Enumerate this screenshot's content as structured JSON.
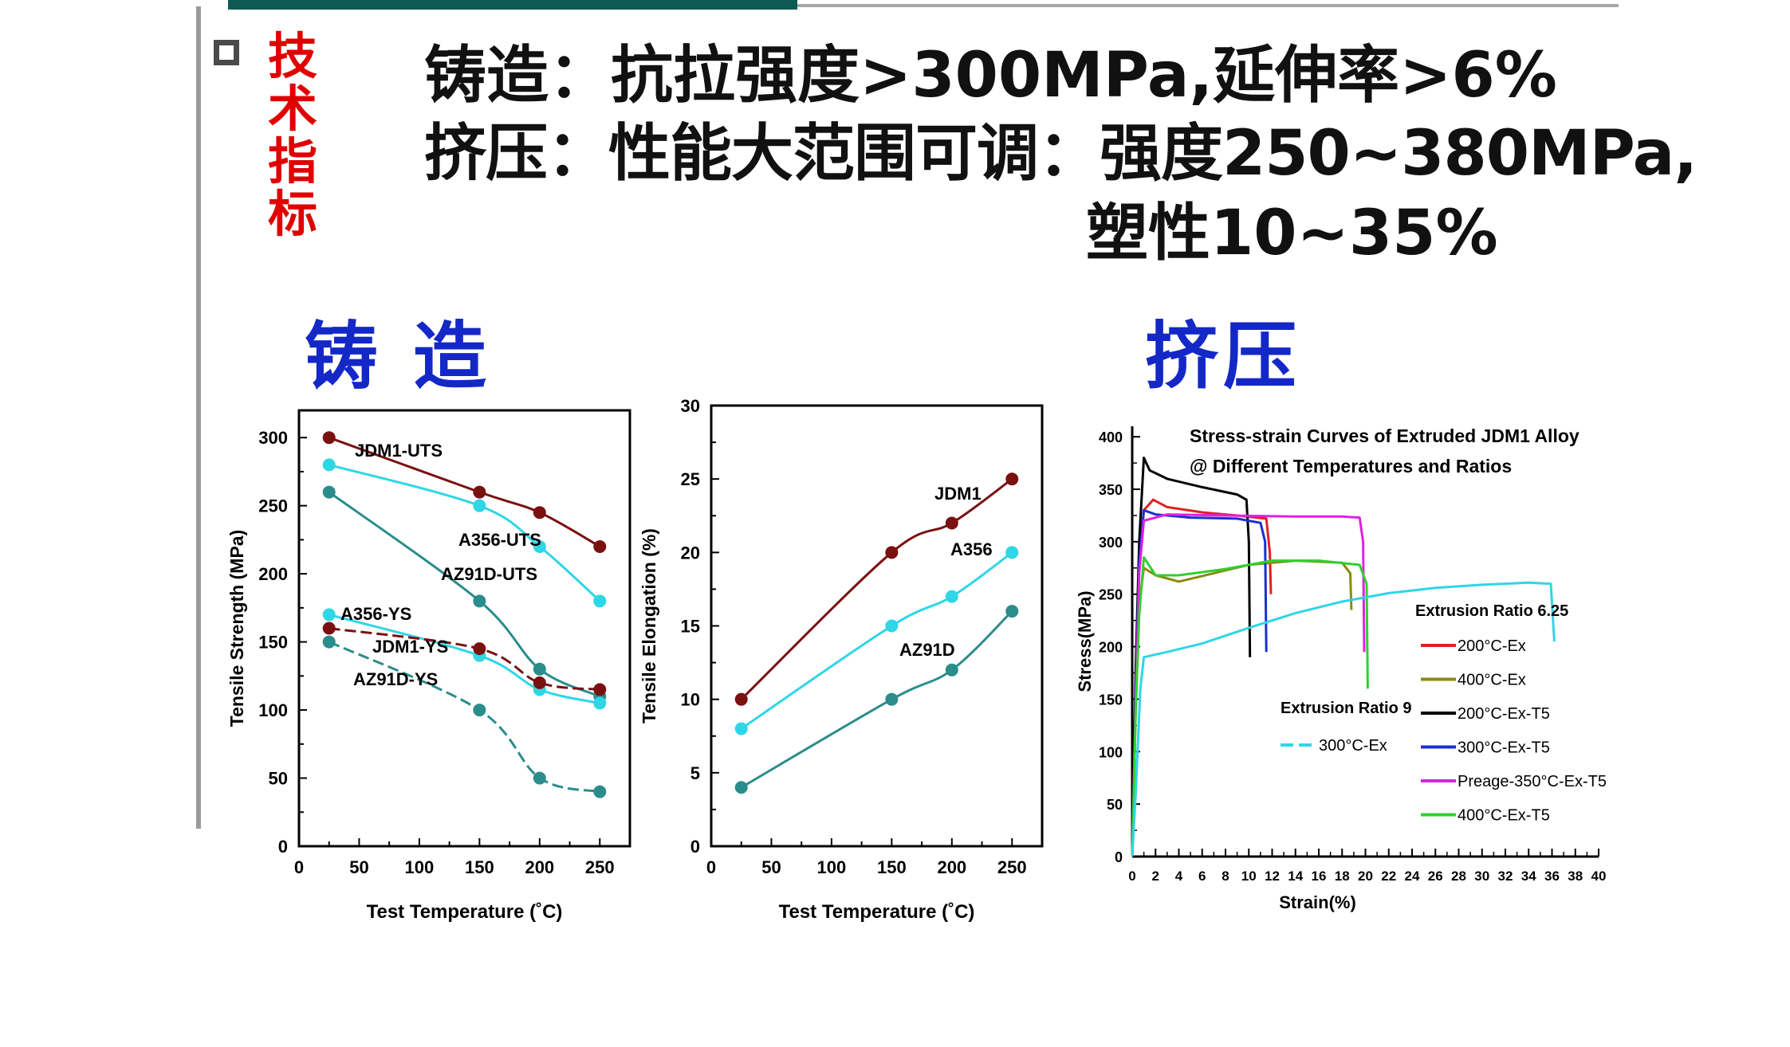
{
  "slide": {
    "tag": [
      "技术",
      "指标"
    ],
    "spec_lines": [
      "铸造：抗拉强度>300MPa,延伸率>6%",
      "挤压：性能大范围可调：强度250~380MPa,",
      "塑性10~35%"
    ],
    "section_casting": "铸 造",
    "section_extrusion": "挤压"
  },
  "colors": {
    "accent_dark_teal": "#0e5a52",
    "tag_red": "#e00000",
    "title_blue": "#1428c8",
    "dark_red": "#7b1010",
    "cyan": "#2fd6e6",
    "teal": "#2b8c8c"
  },
  "chart_data": [
    {
      "type": "line",
      "title": "",
      "xlabel": "Test Temperature (˚C)",
      "ylabel": "Tensile Strength (MPa)",
      "xlim": [
        0,
        275
      ],
      "ylim": [
        0,
        320
      ],
      "xticks": [
        0,
        50,
        100,
        150,
        200,
        250
      ],
      "yticks": [
        0,
        50,
        100,
        150,
        200,
        250,
        300
      ],
      "x": [
        25,
        150,
        200,
        250
      ],
      "series": [
        {
          "name": "JDM1-UTS",
          "values": [
            300,
            260,
            245,
            220
          ],
          "color": "#7b1010",
          "dash": false
        },
        {
          "name": "A356-UTS",
          "values": [
            280,
            250,
            220,
            180
          ],
          "color": "#2fd6e6",
          "dash": false
        },
        {
          "name": "AZ91D-UTS",
          "values": [
            260,
            180,
            130,
            110
          ],
          "color": "#2b8c8c",
          "dash": false
        },
        {
          "name": "A356-YS",
          "values": [
            170,
            140,
            115,
            105
          ],
          "color": "#2fd6e6",
          "dash": false
        },
        {
          "name": "JDM1-YS",
          "values": [
            160,
            145,
            120,
            115
          ],
          "color": "#7b1010",
          "dash": true
        },
        {
          "name": "AZ91D-YS",
          "values": [
            150,
            100,
            50,
            40
          ],
          "color": "#2b8c8c",
          "dash": true
        }
      ]
    },
    {
      "type": "line",
      "title": "",
      "xlabel": "Test Temperature (˚C)",
      "ylabel": "Tensile Elongation (%)",
      "xlim": [
        0,
        275
      ],
      "ylim": [
        0,
        30
      ],
      "xticks": [
        0,
        50,
        100,
        150,
        200,
        250
      ],
      "yticks": [
        0,
        5,
        10,
        15,
        20,
        25,
        30
      ],
      "x": [
        25,
        150,
        200,
        250
      ],
      "series": [
        {
          "name": "JDM1",
          "values": [
            10,
            20,
            22,
            25
          ],
          "color": "#7b1010"
        },
        {
          "name": "A356",
          "values": [
            8,
            15,
            17,
            20
          ],
          "color": "#2fd6e6"
        },
        {
          "name": "AZ91D",
          "values": [
            4,
            10,
            12,
            16
          ],
          "color": "#2b8c8c"
        }
      ]
    },
    {
      "type": "line",
      "title": "Stress-strain Curves of Extruded JDM1 Alloy",
      "subtitle": "@ Different Temperatures and Ratios",
      "xlabel": "Strain(%)",
      "ylabel": "Stress(MPa)",
      "xlim": [
        0,
        40
      ],
      "ylim": [
        0,
        410
      ],
      "xticks": [
        0,
        2,
        4,
        6,
        8,
        10,
        12,
        14,
        16,
        18,
        20,
        22,
        24,
        26,
        28,
        30,
        32,
        34,
        36,
        38,
        40
      ],
      "yticks": [
        0,
        50,
        100,
        150,
        200,
        250,
        300,
        350,
        400
      ],
      "legend_groups": [
        {
          "title": "Extrusion Ratio 6.25",
          "position": "right"
        },
        {
          "title": "Extrusion Ratio 9",
          "position": "center"
        }
      ],
      "series": [
        {
          "name": "200°C-Ex",
          "group": "Extrusion Ratio 6.25",
          "color": "#e02020",
          "points": [
            [
              0,
              0
            ],
            [
              0.3,
              150
            ],
            [
              0.6,
              280
            ],
            [
              1,
              330
            ],
            [
              1.8,
              340
            ],
            [
              3,
              333
            ],
            [
              6,
              328
            ],
            [
              9,
              325
            ],
            [
              11.5,
              322
            ],
            [
              11.8,
              290
            ],
            [
              11.9,
              250
            ]
          ]
        },
        {
          "name": "400°C-Ex",
          "group": "Extrusion Ratio 6.25",
          "color": "#8a8a10",
          "points": [
            [
              0,
              0
            ],
            [
              0.3,
              140
            ],
            [
              0.6,
              240
            ],
            [
              1,
              275
            ],
            [
              2,
              268
            ],
            [
              4,
              262
            ],
            [
              7,
              270
            ],
            [
              10,
              278
            ],
            [
              14,
              282
            ],
            [
              18,
              280
            ],
            [
              18.7,
              270
            ],
            [
              18.8,
              235
            ]
          ]
        },
        {
          "name": "200°C-Ex-T5",
          "group": "Extrusion Ratio 6.25",
          "color": "#000000",
          "points": [
            [
              0,
              0
            ],
            [
              0.3,
              180
            ],
            [
              0.6,
              300
            ],
            [
              1,
              380
            ],
            [
              1.5,
              368
            ],
            [
              3,
              360
            ],
            [
              6,
              352
            ],
            [
              9,
              345
            ],
            [
              9.8,
              340
            ],
            [
              10,
              300
            ],
            [
              10.1,
              190
            ]
          ]
        },
        {
          "name": "300°C-Ex-T5",
          "group": "Extrusion Ratio 6.25",
          "color": "#1830d0",
          "points": [
            [
              0,
              0
            ],
            [
              0.3,
              160
            ],
            [
              0.6,
              280
            ],
            [
              1,
              330
            ],
            [
              2,
              326
            ],
            [
              5,
              323
            ],
            [
              9,
              322
            ],
            [
              11,
              318
            ],
            [
              11.4,
              300
            ],
            [
              11.5,
              195
            ]
          ]
        },
        {
          "name": "Preage-350°C-Ex-T5",
          "group": "Extrusion Ratio 6.25",
          "color": "#e020e0",
          "points": [
            [
              0,
              0
            ],
            [
              0.3,
              150
            ],
            [
              0.6,
              270
            ],
            [
              1,
              320
            ],
            [
              3,
              326
            ],
            [
              8,
              325
            ],
            [
              14,
              324
            ],
            [
              18,
              324
            ],
            [
              19.5,
              323
            ],
            [
              19.8,
              300
            ],
            [
              19.9,
              195
            ]
          ]
        },
        {
          "name": "400°C-Ex-T5",
          "group": "Extrusion Ratio 6.25",
          "color": "#30d030",
          "points": [
            [
              0,
              0
            ],
            [
              0.3,
              140
            ],
            [
              0.6,
              230
            ],
            [
              1,
              285
            ],
            [
              2,
              268
            ],
            [
              4,
              268
            ],
            [
              8,
              274
            ],
            [
              12,
              282
            ],
            [
              16,
              282
            ],
            [
              19.5,
              278
            ],
            [
              20.1,
              260
            ],
            [
              20.2,
              160
            ]
          ]
        },
        {
          "name": "300°C-Ex",
          "group": "Extrusion Ratio 9",
          "color": "#2fd6e6",
          "dash": true,
          "points": [
            [
              0,
              0
            ],
            [
              0.3,
              60
            ],
            [
              0.7,
              160
            ],
            [
              1,
              190
            ],
            [
              3,
              195
            ],
            [
              6,
              203
            ],
            [
              10,
              218
            ],
            [
              14,
              232
            ],
            [
              18,
              243
            ],
            [
              22,
              251
            ],
            [
              26,
              256
            ],
            [
              30,
              259
            ],
            [
              34,
              261
            ],
            [
              35.9,
              260
            ],
            [
              36.2,
              205
            ]
          ]
        }
      ]
    }
  ]
}
